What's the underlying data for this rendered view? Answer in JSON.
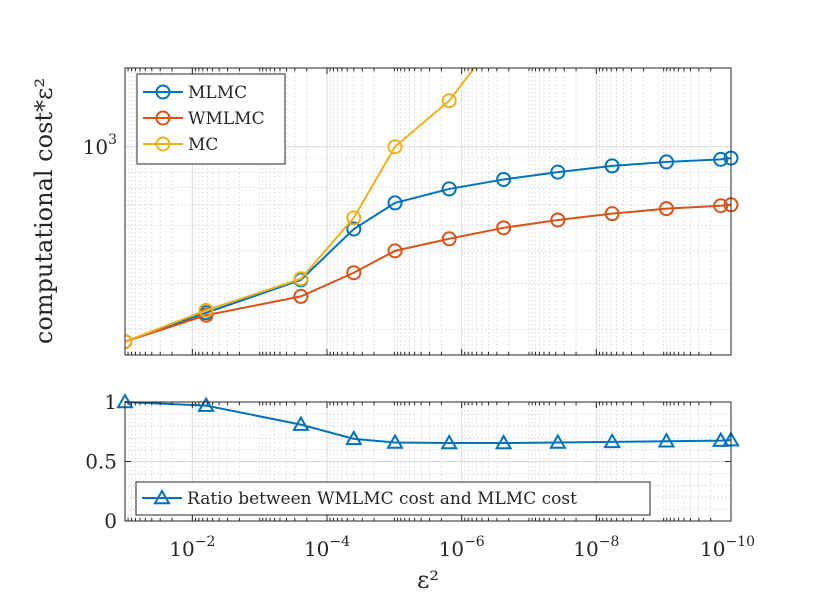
{
  "chart_data": [
    {
      "type": "line",
      "ylabel": "computational cost*ε²",
      "yscale": "log",
      "xscale": "log",
      "xdir": "reverse",
      "xlim": [
        0.1,
        1e-10
      ],
      "ylim": [
        160,
        2000
      ],
      "yticks": [
        {
          "value": 1000,
          "base": "10",
          "exp": "3"
        }
      ],
      "grid": true,
      "legend_position": "top-left",
      "x": [
        0.1,
        0.00625,
        0.000244,
        4e-05,
        9.77e-06,
        1.53e-06,
        2.38e-07,
        3.73e-08,
        5.82e-09,
        9.09e-10,
        1.42e-10
      ],
      "series": [
        {
          "name": "MLMC",
          "color": "#0072BD",
          "marker": "circle",
          "x": [
            0.1,
            0.00625,
            0.000244,
            4e-05,
            9.77e-06,
            1.53e-06,
            2.38e-07,
            3.73e-08,
            5.82e-09,
            9.09e-10,
            1.42e-10,
            1e-10
          ],
          "values": [
            180,
            232,
            310,
            485,
            610,
            690,
            750,
            800,
            845,
            875,
            895,
            905
          ]
        },
        {
          "name": "WMLMC",
          "color": "#D95319",
          "marker": "circle",
          "x": [
            0.1,
            0.00625,
            0.000244,
            4e-05,
            9.77e-06,
            1.53e-06,
            2.38e-07,
            3.73e-08,
            5.82e-09,
            9.09e-10,
            1.42e-10,
            1e-10
          ],
          "values": [
            180,
            227,
            268,
            330,
            400,
            445,
            490,
            525,
            555,
            580,
            595,
            600
          ]
        },
        {
          "name": "MC",
          "color": "#EDB120",
          "marker": "circle",
          "x": [
            0.1,
            0.00625,
            0.000244,
            4e-05,
            9.77e-06,
            1.53e-06,
            6.5e-07
          ],
          "values": [
            180,
            237,
            313,
            535,
            1000,
            1500,
            2000
          ]
        }
      ]
    },
    {
      "type": "line",
      "xlabel": "ε²",
      "xscale": "log",
      "xdir": "reverse",
      "xlim": [
        0.1,
        1e-10
      ],
      "ylim": [
        0,
        1
      ],
      "xticks": [
        {
          "value": 0.01,
          "base": "10",
          "exp": "−2"
        },
        {
          "value": 0.0001,
          "base": "10",
          "exp": "−4"
        },
        {
          "value": 1e-06,
          "base": "10",
          "exp": "−6"
        },
        {
          "value": 1e-08,
          "base": "10",
          "exp": "−8"
        },
        {
          "value": 1e-10,
          "base": "10",
          "exp": "−10"
        }
      ],
      "yticks": [
        "0",
        "0.5",
        "1"
      ],
      "ytick_values": [
        0,
        0.5,
        1
      ],
      "grid": true,
      "legend_position": "bottom-left",
      "series": [
        {
          "name": "Ratio between WMLMC cost and MLMC cost",
          "color": "#0072BD",
          "marker": "triangle",
          "x": [
            0.1,
            0.00625,
            0.000244,
            4e-05,
            9.77e-06,
            1.53e-06,
            2.38e-07,
            3.73e-08,
            5.82e-09,
            9.09e-10,
            1.42e-10,
            1e-10
          ],
          "values": [
            1.0,
            0.97,
            0.81,
            0.69,
            0.66,
            0.655,
            0.655,
            0.66,
            0.665,
            0.67,
            0.675,
            0.68
          ]
        }
      ]
    }
  ]
}
